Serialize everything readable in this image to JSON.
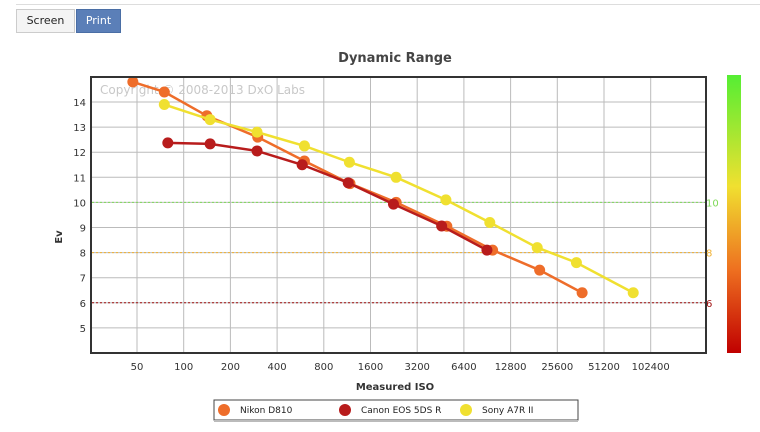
{
  "toolbar": {
    "screen_label": "Screen",
    "print_label": "Print"
  },
  "chart_data": {
    "type": "line",
    "title": "Dynamic Range",
    "xlabel": "Measured ISO",
    "ylabel": "Ev",
    "x_scale": "log2",
    "x_ticks": [
      "50",
      "100",
      "200",
      "400",
      "800",
      "1600",
      "3200",
      "6400",
      "12800",
      "25600",
      "51200",
      "102400"
    ],
    "y_ticks": [
      5,
      6,
      7,
      8,
      9,
      10,
      11,
      12,
      13,
      14
    ],
    "ylim": [
      3.9,
      15
    ],
    "grid": true,
    "watermark": "Copyright © 2008-2013 DxO Labs",
    "reference_lines": [
      {
        "value": 10,
        "label": "10",
        "color": "#7ed957"
      },
      {
        "value": 8,
        "label": "8",
        "color": "#f0b030"
      },
      {
        "value": 6,
        "label": "6",
        "color": "#a01010"
      }
    ],
    "legend_position": "bottom",
    "series": [
      {
        "name": "Nikon D810",
        "color": "#ee6d2a",
        "points": [
          [
            47,
            14.8
          ],
          [
            75,
            14.4
          ],
          [
            141,
            13.45
          ],
          [
            300,
            12.6
          ],
          [
            600,
            11.65
          ],
          [
            1180,
            10.75
          ],
          [
            2340,
            10.0
          ],
          [
            4970,
            9.05
          ],
          [
            9800,
            8.1
          ],
          [
            19700,
            7.3
          ],
          [
            37000,
            6.4
          ]
        ]
      },
      {
        "name": "Canon EOS 5DS R",
        "color": "#b81c1c",
        "points": [
          [
            79,
            12.37
          ],
          [
            148,
            12.33
          ],
          [
            297,
            12.05
          ],
          [
            580,
            11.5
          ],
          [
            1150,
            10.78
          ],
          [
            2250,
            9.93
          ],
          [
            4600,
            9.06
          ],
          [
            9010,
            8.1
          ]
        ]
      },
      {
        "name": "Sony A7R II",
        "color": "#f0e030",
        "points": [
          [
            75,
            13.9
          ],
          [
            148,
            13.3
          ],
          [
            297,
            12.8
          ],
          [
            600,
            12.25
          ],
          [
            1170,
            11.6
          ],
          [
            2340,
            11.0
          ],
          [
            4900,
            10.1
          ],
          [
            9400,
            9.2
          ],
          [
            19000,
            8.2
          ],
          [
            34000,
            7.6
          ],
          [
            79000,
            6.4
          ]
        ]
      }
    ]
  }
}
